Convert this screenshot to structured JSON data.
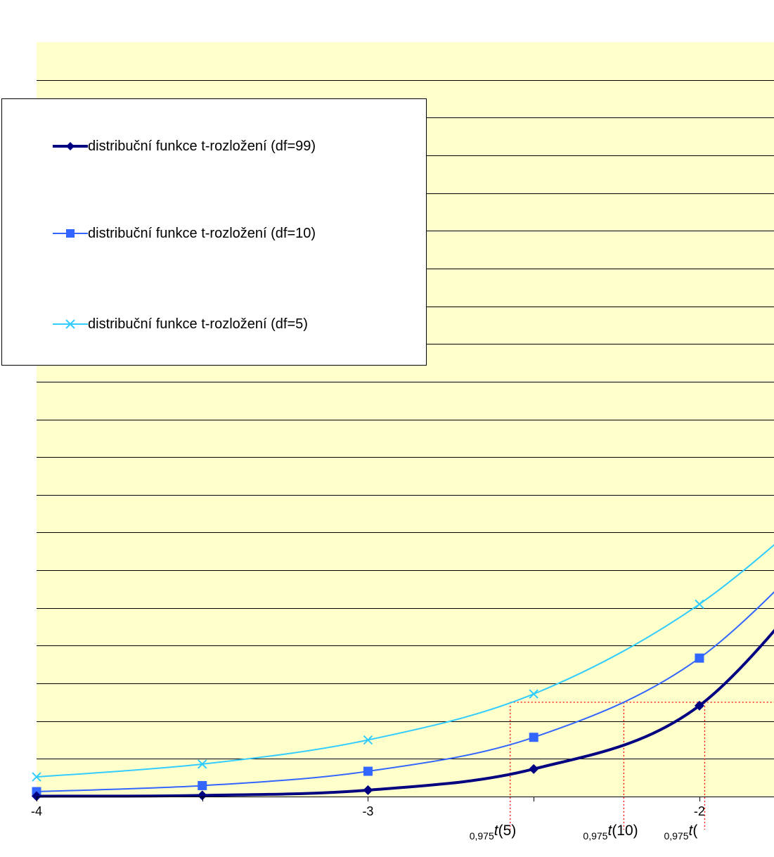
{
  "chart_data": {
    "type": "line",
    "title": "",
    "xlabel": "",
    "ylabel": "",
    "xlim": [
      -4,
      -1.775
    ],
    "ylim": [
      0,
      0.2
    ],
    "x_tick_labels": [
      {
        "x": -4,
        "label": "-4"
      },
      {
        "x": -3,
        "label": "-3"
      },
      {
        "x": -2,
        "label": "-2"
      }
    ],
    "x_minor_ticks": [
      -3.5,
      -2.5
    ],
    "y_gridlines": 20,
    "grid": "horizontal",
    "background_color": "#FFFFCC",
    "legend_position": "top-left",
    "series": [
      {
        "name": "distribuční funkce t-rozložení (df=99)",
        "color": "#000080",
        "marker": "diamond",
        "line_width": 4,
        "x": [
          -4,
          -3.5,
          -3,
          -2.5,
          -2
        ],
        "values": [
          0.0001,
          0.0003,
          0.0017,
          0.0073,
          0.0241
        ]
      },
      {
        "name": "distribuční funkce t-rozložení (df=10)",
        "color": "#3366FF",
        "marker": "square",
        "line_width": 2,
        "x": [
          -4,
          -3.5,
          -3,
          -2.5,
          -2
        ],
        "values": [
          0.0013,
          0.0029,
          0.0067,
          0.0157,
          0.0367
        ]
      },
      {
        "name": "distribuční funkce t-rozložení (df=5)",
        "color": "#33CCFF",
        "marker": "x",
        "line_width": 2,
        "x": [
          -4,
          -3.5,
          -3,
          -2.5,
          -2
        ],
        "values": [
          0.0052,
          0.0086,
          0.015,
          0.0272,
          0.051
        ]
      }
    ],
    "reference": {
      "y": 0.025,
      "color": "#FF0000",
      "style": "dotted",
      "critical_values": [
        {
          "x": -2.571,
          "prefix": "0,975",
          "symbol": "t",
          "arg": "(5)",
          "label": "0,975t(5)"
        },
        {
          "x": -2.228,
          "prefix": "0,975",
          "symbol": "t",
          "arg": "(10)",
          "label": "0,975t(10)"
        },
        {
          "x": -1.984,
          "prefix": "0,975",
          "symbol": "t",
          "arg": "(",
          "label": "0,975t("
        }
      ]
    }
  }
}
